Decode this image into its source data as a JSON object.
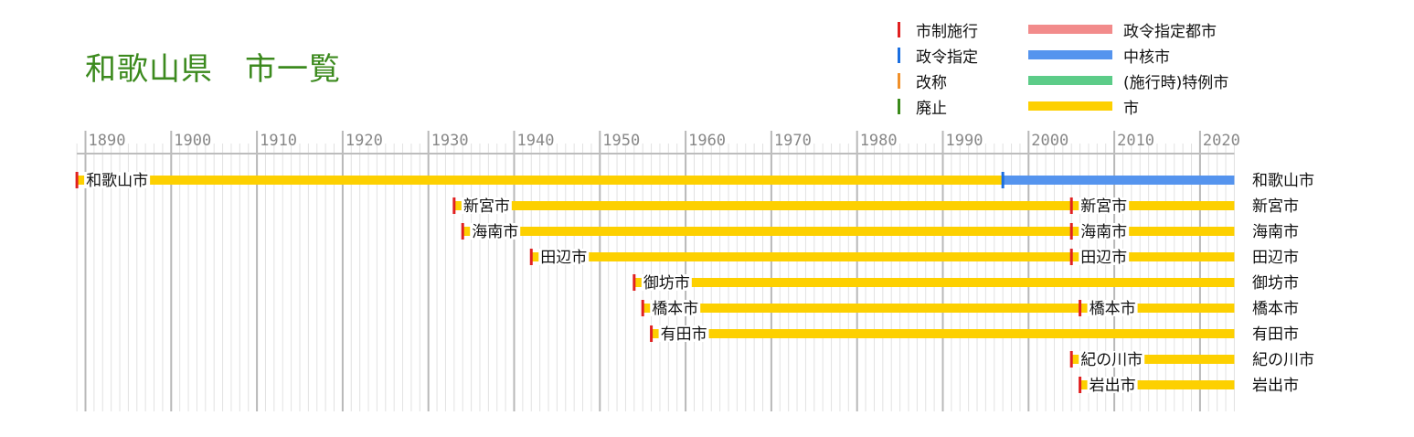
{
  "title": "和歌山県　市一覧",
  "legend": {
    "events": [
      {
        "label": "市制施行",
        "color": "#e02020"
      },
      {
        "label": "政令指定",
        "color": "#1a6ee0"
      },
      {
        "label": "改称",
        "color": "#f0902a"
      },
      {
        "label": "廃止",
        "color": "#3a8a1a"
      }
    ],
    "types": [
      {
        "label": "政令指定都市",
        "color": "#f28b8b"
      },
      {
        "label": "中核市",
        "color": "#5594ee"
      },
      {
        "label": "(施行時)特例市",
        "color": "#5ccc88"
      },
      {
        "label": "市",
        "color": "#fdd000"
      }
    ]
  },
  "chart_data": {
    "type": "timeline",
    "x_range": [
      1889,
      2024
    ],
    "decade_ticks": [
      "1890",
      "1900",
      "1910",
      "1920",
      "1930",
      "1940",
      "1950",
      "1960",
      "1970",
      "1980",
      "1990",
      "2000",
      "2010",
      "2020"
    ],
    "grid": "yearly",
    "rows": [
      {
        "end_label": "和歌山市",
        "segments": [
          {
            "start": 1889,
            "end": 1997,
            "type": "市"
          },
          {
            "start": 1997,
            "end": 2024,
            "type": "中核市"
          }
        ],
        "events": [
          {
            "year": 1889,
            "type": "市制施行",
            "label": "和歌山市"
          },
          {
            "year": 1997,
            "type": "政令指定"
          }
        ]
      },
      {
        "end_label": "新宮市",
        "segments": [
          {
            "start": 1933,
            "end": 2024,
            "type": "市"
          }
        ],
        "events": [
          {
            "year": 1933,
            "type": "市制施行",
            "label": "新宮市"
          },
          {
            "year": 2005,
            "type": "市制施行",
            "label": "新宮市"
          }
        ]
      },
      {
        "end_label": "海南市",
        "segments": [
          {
            "start": 1934,
            "end": 2024,
            "type": "市"
          }
        ],
        "events": [
          {
            "year": 1934,
            "type": "市制施行",
            "label": "海南市"
          },
          {
            "year": 2005,
            "type": "市制施行",
            "label": "海南市"
          }
        ]
      },
      {
        "end_label": "田辺市",
        "segments": [
          {
            "start": 1942,
            "end": 2024,
            "type": "市"
          }
        ],
        "events": [
          {
            "year": 1942,
            "type": "市制施行",
            "label": "田辺市"
          },
          {
            "year": 2005,
            "type": "市制施行",
            "label": "田辺市"
          }
        ]
      },
      {
        "end_label": "御坊市",
        "segments": [
          {
            "start": 1954,
            "end": 2024,
            "type": "市"
          }
        ],
        "events": [
          {
            "year": 1954,
            "type": "市制施行",
            "label": "御坊市"
          }
        ]
      },
      {
        "end_label": "橋本市",
        "segments": [
          {
            "start": 1955,
            "end": 2024,
            "type": "市"
          }
        ],
        "events": [
          {
            "year": 1955,
            "type": "市制施行",
            "label": "橋本市"
          },
          {
            "year": 2006,
            "type": "市制施行",
            "label": "橋本市"
          }
        ]
      },
      {
        "end_label": "有田市",
        "segments": [
          {
            "start": 1956,
            "end": 2024,
            "type": "市"
          }
        ],
        "events": [
          {
            "year": 1956,
            "type": "市制施行",
            "label": "有田市"
          }
        ]
      },
      {
        "end_label": "紀の川市",
        "segments": [
          {
            "start": 2005,
            "end": 2024,
            "type": "市"
          }
        ],
        "events": [
          {
            "year": 2005,
            "type": "市制施行",
            "label": "紀の川市"
          }
        ]
      },
      {
        "end_label": "岩出市",
        "segments": [
          {
            "start": 2006,
            "end": 2024,
            "type": "市"
          }
        ],
        "events": [
          {
            "year": 2006,
            "type": "市制施行",
            "label": "岩出市"
          }
        ]
      }
    ]
  }
}
